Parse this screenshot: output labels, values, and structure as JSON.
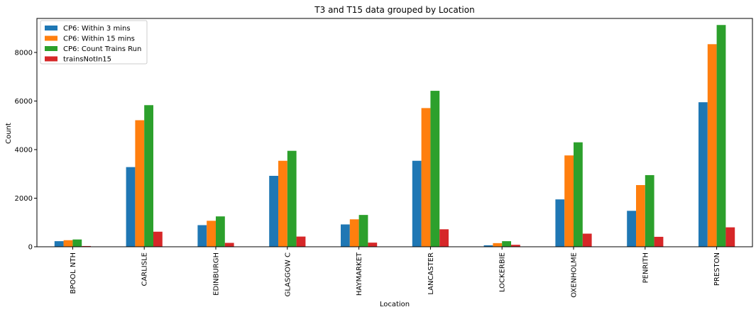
{
  "chart_data": {
    "type": "bar",
    "title": "T3 and T15 data grouped by Location",
    "xlabel": "Location",
    "ylabel": "Count",
    "ylim": [
      0,
      9400
    ],
    "yticks": [
      0,
      2000,
      4000,
      6000,
      8000
    ],
    "legend_position": "top-left",
    "grid": false,
    "categories": [
      "BPOOL NTH",
      "CARLISLE",
      "EDINBURGH",
      "GLASGOW C",
      "HAYMARKET",
      "LANCASTER",
      "LOCKERBIE",
      "OXENHOLME",
      "PENRITH",
      "PRESTON"
    ],
    "series": [
      {
        "name": "CP6: Within 3 mins",
        "color": "#1f77b4",
        "values": [
          230,
          3280,
          890,
          2920,
          920,
          3540,
          60,
          1950,
          1480,
          5950
        ]
      },
      {
        "name": "CP6: Within 15 mins",
        "color": "#ff7f0e",
        "values": [
          270,
          5210,
          1070,
          3540,
          1130,
          5710,
          150,
          3760,
          2540,
          8340
        ]
      },
      {
        "name": "CP6: Count Trains Run",
        "color": "#2ca02c",
        "values": [
          300,
          5830,
          1250,
          3950,
          1310,
          6420,
          230,
          4300,
          2950,
          9130
        ]
      },
      {
        "name": "trainsNotIn15",
        "color": "#d62728",
        "values": [
          30,
          620,
          160,
          420,
          170,
          720,
          80,
          540,
          410,
          800
        ]
      }
    ]
  }
}
